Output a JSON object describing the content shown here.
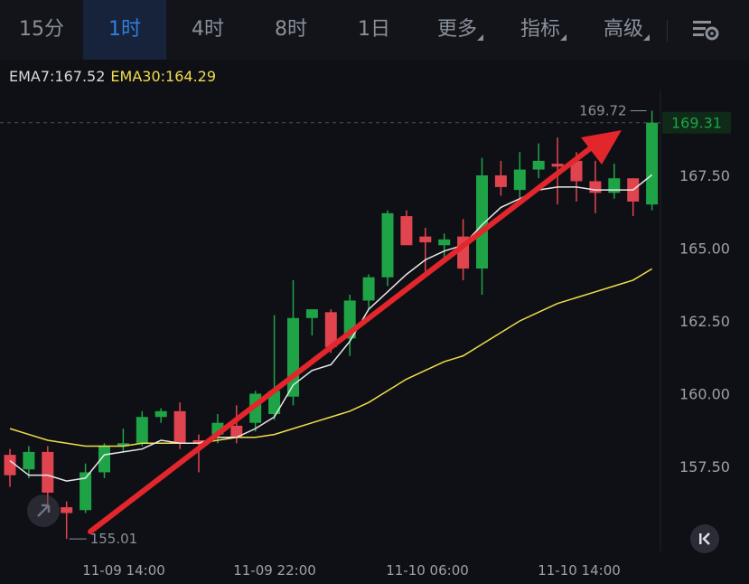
{
  "toolbar": {
    "tabs": [
      {
        "label": "15分"
      },
      {
        "label": "1时"
      },
      {
        "label": "4时"
      },
      {
        "label": "8时"
      },
      {
        "label": "1日"
      },
      {
        "label": "更多"
      },
      {
        "label": "指标"
      },
      {
        "label": "高级"
      }
    ],
    "active_tab": "1时",
    "settings_icon": "settings-sliders-icon"
  },
  "indicators": {
    "ema7_label": "EMA7:167.52",
    "ema30_label": "EMA30:164.29"
  },
  "colors": {
    "up": "#1ea446",
    "down": "#e0444f",
    "ema7": "#e8e8e8",
    "ema30": "#f0de4c",
    "arrow": "#e3262c",
    "accent": "#2f7fe0"
  },
  "chart_data": {
    "type": "candlestick",
    "y_ticks": [
      "157.50",
      "160.00",
      "162.50",
      "165.00",
      "167.50"
    ],
    "ylim": [
      155.0,
      170.0
    ],
    "x_ticks": [
      "11-09 14:00",
      "11-09 22:00",
      "11-10 06:00",
      "11-10 14:00"
    ],
    "current_price": "169.31",
    "high_label": "169.72",
    "low_label": "155.01",
    "grid": false,
    "candles": [
      {
        "o": 157.9,
        "h": 158.1,
        "c": 157.2,
        "l": 156.8
      },
      {
        "o": 157.4,
        "h": 158.2,
        "c": 158.0,
        "l": 157.1
      },
      {
        "o": 158.0,
        "h": 158.2,
        "c": 156.6,
        "l": 156.2
      },
      {
        "o": 156.1,
        "h": 156.3,
        "c": 155.9,
        "l": 155.01
      },
      {
        "o": 156.0,
        "h": 157.6,
        "c": 157.3,
        "l": 155.9
      },
      {
        "o": 157.3,
        "h": 158.3,
        "c": 158.2,
        "l": 157.1
      },
      {
        "o": 158.2,
        "h": 158.8,
        "c": 158.3,
        "l": 158.0
      },
      {
        "o": 158.3,
        "h": 159.4,
        "c": 159.2,
        "l": 158.2
      },
      {
        "o": 159.2,
        "h": 159.5,
        "c": 159.4,
        "l": 159.0
      },
      {
        "o": 159.4,
        "h": 159.7,
        "c": 158.3,
        "l": 158.1
      },
      {
        "o": 158.4,
        "h": 158.6,
        "c": 158.3,
        "l": 157.3
      },
      {
        "o": 158.6,
        "h": 159.3,
        "c": 159.0,
        "l": 158.3
      },
      {
        "o": 158.9,
        "h": 159.6,
        "c": 158.5,
        "l": 158.3
      },
      {
        "o": 159.0,
        "h": 160.1,
        "c": 160.0,
        "l": 158.7
      },
      {
        "o": 159.3,
        "h": 162.7,
        "c": 160.1,
        "l": 159.1
      },
      {
        "o": 159.9,
        "h": 163.9,
        "c": 162.6,
        "l": 159.6
      },
      {
        "o": 162.6,
        "h": 162.9,
        "c": 162.9,
        "l": 162.0
      },
      {
        "o": 162.8,
        "h": 162.9,
        "c": 161.6,
        "l": 161.4
      },
      {
        "o": 161.9,
        "h": 163.4,
        "c": 163.2,
        "l": 161.3
      },
      {
        "o": 163.2,
        "h": 164.1,
        "c": 164.0,
        "l": 162.9
      },
      {
        "o": 164.0,
        "h": 166.3,
        "c": 166.2,
        "l": 163.7
      },
      {
        "o": 166.1,
        "h": 166.3,
        "c": 165.1,
        "l": 165.2
      },
      {
        "o": 165.4,
        "h": 165.7,
        "c": 165.2,
        "l": 164.2
      },
      {
        "o": 165.1,
        "h": 165.5,
        "c": 165.3,
        "l": 164.6
      },
      {
        "o": 165.4,
        "h": 166.0,
        "c": 164.3,
        "l": 163.9
      },
      {
        "o": 164.3,
        "h": 168.1,
        "c": 167.5,
        "l": 163.4
      },
      {
        "o": 167.5,
        "h": 168.0,
        "c": 167.1,
        "l": 166.8
      },
      {
        "o": 167.0,
        "h": 168.3,
        "c": 167.7,
        "l": 166.6
      },
      {
        "o": 167.7,
        "h": 168.6,
        "c": 168.0,
        "l": 167.4
      },
      {
        "o": 167.9,
        "h": 168.8,
        "c": 167.8,
        "l": 166.5
      },
      {
        "o": 168.0,
        "h": 168.3,
        "c": 167.3,
        "l": 166.6
      },
      {
        "o": 167.3,
        "h": 168.0,
        "c": 166.9,
        "l": 166.2
      },
      {
        "o": 166.9,
        "h": 167.9,
        "c": 167.4,
        "l": 166.7
      },
      {
        "o": 167.4,
        "h": 167.4,
        "c": 166.6,
        "l": 166.1
      },
      {
        "o": 166.5,
        "h": 169.72,
        "c": 169.31,
        "l": 166.3
      }
    ],
    "ema7": [
      157.7,
      157.2,
      157.2,
      157.0,
      157.1,
      157.9,
      158.0,
      158.1,
      158.4,
      158.3,
      158.3,
      158.5,
      158.5,
      158.8,
      159.2,
      160.3,
      160.8,
      161.0,
      161.8,
      162.9,
      163.5,
      164.1,
      164.6,
      164.9,
      165.1,
      165.8,
      166.4,
      166.7,
      167.0,
      167.1,
      167.1,
      167.0,
      167.0,
      167.0,
      167.52
    ],
    "ema30": [
      158.8,
      158.6,
      158.4,
      158.3,
      158.2,
      158.2,
      158.2,
      158.3,
      158.3,
      158.3,
      158.3,
      158.4,
      158.5,
      158.5,
      158.6,
      158.8,
      159.0,
      159.2,
      159.4,
      159.7,
      160.1,
      160.5,
      160.8,
      161.1,
      161.3,
      161.7,
      162.1,
      162.5,
      162.8,
      163.1,
      163.3,
      163.5,
      163.7,
      163.9,
      164.29
    ]
  }
}
